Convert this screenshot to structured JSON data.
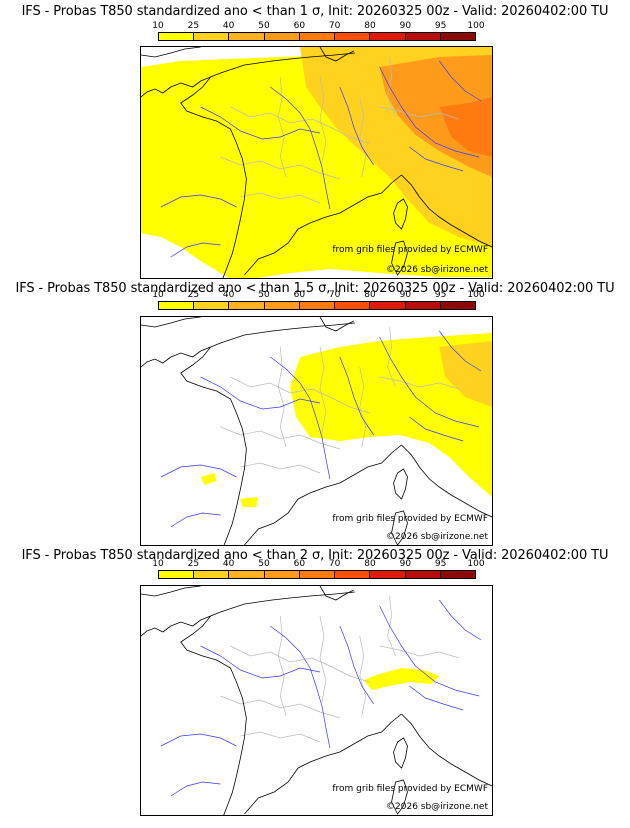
{
  "panels": [
    {
      "title": "IFS - Probas T850  standardized ano < than 1 σ, Init: 20260325 00z - Valid: 20260402:00 TU",
      "level": 3
    },
    {
      "title": "IFS - Probas T850  standardized ano < than 1.5 σ, Init: 20260325 00z - Valid: 20260402:00 TU",
      "level": 2
    },
    {
      "title": "IFS - Probas T850  standardized ano < than 2 σ, Init: 20260325 00z - Valid: 20260402:00 TU",
      "level": 1
    }
  ],
  "legend": {
    "ticks": [
      "10",
      "25",
      "40",
      "50",
      "60",
      "70",
      "80",
      "90",
      "95",
      "100"
    ],
    "colors": [
      "#ffff00",
      "#ffd21f",
      "#ffb21f",
      "#ff9b1a",
      "#ff7a0f",
      "#ff4d0a",
      "#e01a0a",
      "#b80d0d",
      "#8a0a0a"
    ]
  },
  "credits": {
    "source": "from grib files provided by ECMWF",
    "copyright": "©2026 sb@irizone.net"
  },
  "colors": {
    "coast": "#000000",
    "rivers": "#3a3aff",
    "borders": "#bbbbbb",
    "prob_low": "#ffff00",
    "prob_mid": "#ffd21f",
    "prob_high": "#ff9b1a"
  }
}
